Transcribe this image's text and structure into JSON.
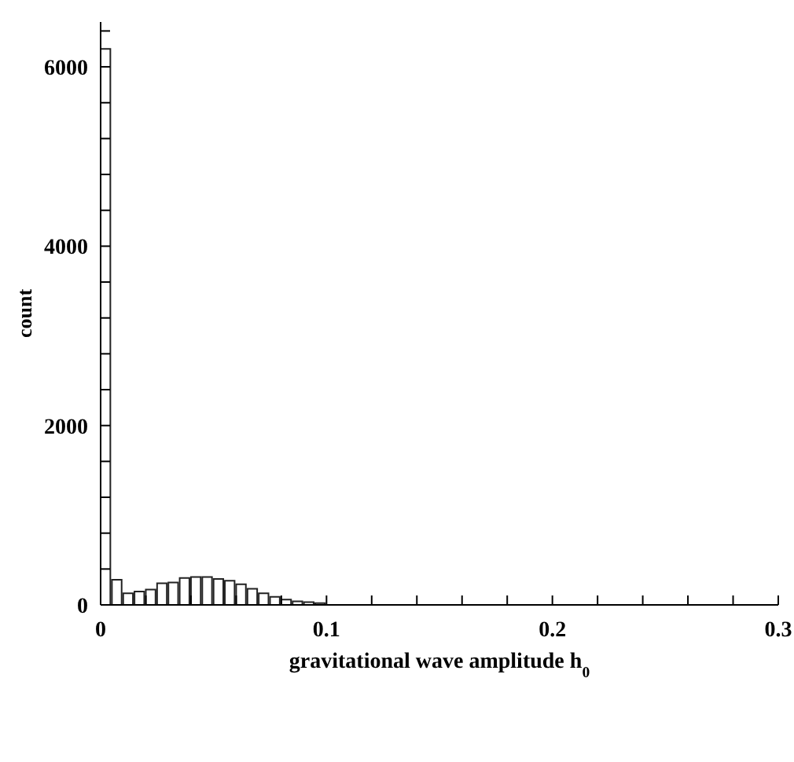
{
  "chart_data": {
    "type": "histogram",
    "xlabel": "gravitational wave amplitude h$_{0}$",
    "ylabel": "count",
    "bins": [
      0,
      0.005,
      0.01,
      0.015,
      0.02,
      0.025,
      0.03,
      0.035,
      0.04,
      0.045,
      0.05,
      0.055,
      0.06,
      0.065,
      0.07,
      0.075,
      0.08,
      0.085,
      0.09,
      0.095,
      0.1
    ],
    "values": [
      6200,
      280,
      130,
      150,
      170,
      240,
      250,
      300,
      310,
      310,
      290,
      270,
      230,
      180,
      130,
      90,
      60,
      40,
      30,
      20
    ],
    "color": "#222222",
    "xlim": [
      0,
      0.3
    ],
    "xticks": [
      0,
      {
        "value": 0.02,
        "label": null
      },
      {
        "value": 0.04,
        "label": null
      },
      {
        "value": 0.06,
        "label": null
      },
      {
        "value": 0.08,
        "label": null
      },
      0.1,
      {
        "value": 0.12,
        "label": null
      },
      {
        "value": 0.14,
        "label": null
      },
      {
        "value": 0.16,
        "label": null
      },
      {
        "value": 0.18,
        "label": null
      },
      0.2,
      {
        "value": 0.22,
        "label": null
      },
      {
        "value": 0.24,
        "label": null
      },
      {
        "value": 0.26,
        "label": null
      },
      {
        "value": 0.28,
        "label": null
      },
      0.3
    ],
    "ylim": [
      0,
      6500
    ],
    "yticks": [
      0,
      {
        "value": 400,
        "label": null
      },
      {
        "value": 800,
        "label": null
      },
      {
        "value": 1200,
        "label": null
      },
      {
        "value": 1600,
        "label": null
      },
      2000,
      {
        "value": 2400,
        "label": null
      },
      {
        "value": 2800,
        "label": null
      },
      {
        "value": 3200,
        "label": null
      },
      {
        "value": 3600,
        "label": null
      },
      4000,
      {
        "value": 4400,
        "label": null
      },
      {
        "value": 4800,
        "label": null
      },
      {
        "value": 5200,
        "label": null
      },
      {
        "value": 5600,
        "label": null
      },
      6000,
      {
        "value": 6400,
        "label": null
      }
    ],
    "grid": false,
    "legend": false
  }
}
